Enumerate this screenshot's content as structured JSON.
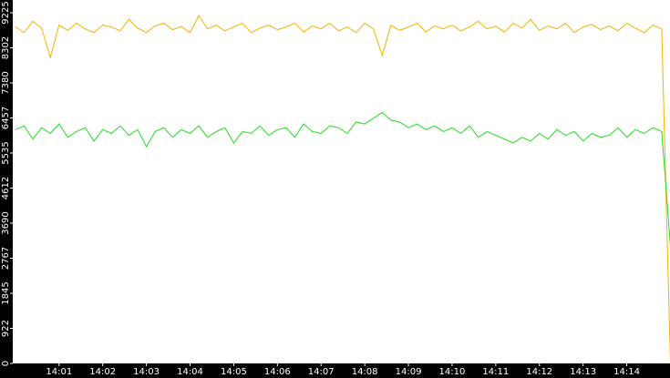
{
  "chart_data": {
    "type": "line",
    "x": [
      840,
      840.2,
      840.4,
      840.6,
      840.8,
      841,
      841.2,
      841.4,
      841.6,
      841.8,
      842,
      842.2,
      842.4,
      842.6,
      842.8,
      843,
      843.2,
      843.4,
      843.6,
      843.8,
      844,
      844.2,
      844.4,
      844.6,
      844.8,
      845,
      845.2,
      845.4,
      845.6,
      845.8,
      846,
      846.2,
      846.4,
      846.6,
      846.8,
      847,
      847.2,
      847.4,
      847.6,
      847.8,
      848,
      848.2,
      848.4,
      848.6,
      848.8,
      849,
      849.2,
      849.4,
      849.6,
      849.8,
      850,
      850.2,
      850.4,
      850.6,
      850.8,
      851,
      851.2,
      851.4,
      851.6,
      851.8,
      852,
      852.2,
      852.4,
      852.6,
      852.8,
      853,
      853.2,
      853.4,
      853.6,
      853.8,
      854,
      854.2,
      854.4,
      854.6,
      854.8,
      855
    ],
    "series": [
      {
        "color": "#f0b400",
        "values": [
          8850,
          8700,
          9000,
          8820,
          8050,
          8900,
          8760,
          8950,
          8800,
          8700,
          8900,
          8850,
          8750,
          9050,
          8820,
          8700,
          8880,
          8950,
          8780,
          8860,
          8700,
          9150,
          8800,
          8900,
          8750,
          8850,
          8950,
          8700,
          8820,
          8900,
          8780,
          8850,
          8950,
          8720,
          8880,
          8800,
          8950,
          8750,
          8850,
          8700,
          8950,
          8800,
          8100,
          8900,
          8760,
          8850,
          8950,
          8720,
          8880,
          8800,
          8900,
          8750,
          8850,
          9000,
          8800,
          8870,
          8720,
          8950,
          8820,
          9050,
          8760,
          8880,
          8800,
          8950,
          8700,
          8850,
          8920,
          8780,
          8880,
          8750,
          8950,
          8820,
          8700,
          8900,
          8800,
          0
        ]
      },
      {
        "color": "#22dd22",
        "values": [
          6150,
          6250,
          5900,
          6200,
          6050,
          6300,
          5950,
          6100,
          6200,
          5850,
          6150,
          6050,
          6250,
          6000,
          6150,
          5700,
          6100,
          6200,
          5950,
          6150,
          6050,
          6250,
          5950,
          6100,
          6200,
          5800,
          6100,
          6050,
          6250,
          6000,
          6150,
          6200,
          5950,
          6300,
          6100,
          6050,
          6250,
          6200,
          6050,
          6350,
          6300,
          6450,
          6600,
          6400,
          6350,
          6200,
          6300,
          6150,
          6250,
          6100,
          6200,
          6050,
          6250,
          5950,
          6100,
          6000,
          5900,
          5800,
          5950,
          5850,
          6050,
          5900,
          6150,
          6000,
          6100,
          5850,
          6050,
          5950,
          6000,
          6200,
          5950,
          6150,
          6050,
          6200,
          6100,
          3100
        ]
      }
    ],
    "xlim": [
      839.94,
      854.99
    ],
    "xticks": [
      {
        "value": 841,
        "label": "14:01"
      },
      {
        "value": 842,
        "label": "14:02"
      },
      {
        "value": 843,
        "label": "14:03"
      },
      {
        "value": 844,
        "label": "14:04"
      },
      {
        "value": 845,
        "label": "14:05"
      },
      {
        "value": 846,
        "label": "14:06"
      },
      {
        "value": 847,
        "label": "14:07"
      },
      {
        "value": 848,
        "label": "14:08"
      },
      {
        "value": 849,
        "label": "14:09"
      },
      {
        "value": 850,
        "label": "14:10"
      },
      {
        "value": 851,
        "label": "14:11"
      },
      {
        "value": 852,
        "label": "14:12"
      },
      {
        "value": 853,
        "label": "14:13"
      },
      {
        "value": 854,
        "label": "14:14"
      }
    ],
    "ylim": [
      0,
      9560
    ],
    "yticks": [
      0,
      922,
      1845,
      2767,
      3690,
      4612,
      5535,
      6457,
      7380,
      8302,
      9225
    ]
  }
}
